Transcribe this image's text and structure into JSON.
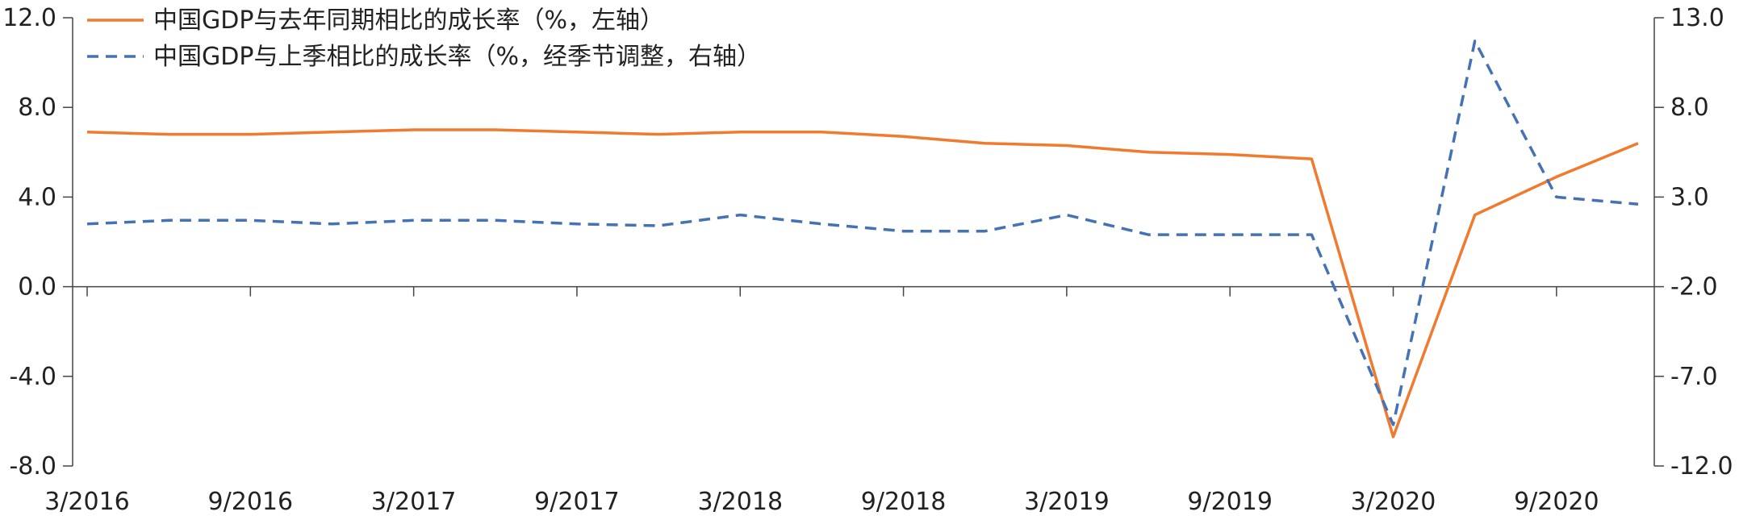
{
  "chart_data": {
    "type": "line",
    "x": [
      "3/2016",
      "6/2016",
      "9/2016",
      "12/2016",
      "3/2017",
      "6/2017",
      "9/2017",
      "12/2017",
      "3/2018",
      "6/2018",
      "9/2018",
      "12/2018",
      "3/2019",
      "6/2019",
      "9/2019",
      "12/2019",
      "3/2020",
      "6/2020",
      "9/2020",
      "12/2020"
    ],
    "xtick_labels": [
      "3/2016",
      "9/2016",
      "3/2017",
      "9/2017",
      "3/2018",
      "9/2018",
      "3/2019",
      "9/2019",
      "3/2020",
      "9/2020"
    ],
    "series": [
      {
        "name": "中国GDP与去年同期相比的成长率（%，左轴）",
        "axis": "left",
        "color": "#F07A2E",
        "style": "solid",
        "values": [
          6.9,
          6.8,
          6.8,
          6.9,
          7.0,
          7.0,
          6.9,
          6.8,
          6.9,
          6.9,
          6.7,
          6.4,
          6.3,
          6.0,
          5.9,
          5.7,
          -6.7,
          3.2,
          4.9,
          6.4
        ]
      },
      {
        "name": "中国GDP与上季相比的成长率（%，经季节调整，右轴）",
        "axis": "right",
        "color": "#4472B4",
        "style": "dashed",
        "values": [
          1.5,
          1.7,
          1.7,
          1.5,
          1.7,
          1.7,
          1.5,
          1.4,
          2.0,
          1.5,
          1.1,
          1.1,
          2.0,
          0.9,
          0.9,
          0.9,
          -9.7,
          11.7,
          3.0,
          2.6
        ]
      }
    ],
    "y_left": {
      "min": -8.0,
      "max": 12.0,
      "ticks": [
        "12.0",
        "8.0",
        "4.0",
        "0.0",
        "-4.0",
        "-8.0"
      ]
    },
    "y_right": {
      "min": -12.0,
      "max": 13.0,
      "ticks": [
        "13.0",
        "8.0",
        "3.0",
        "-2.0",
        "-7.0",
        "-12.0"
      ]
    },
    "legend_position": "top-left",
    "grid": false
  }
}
